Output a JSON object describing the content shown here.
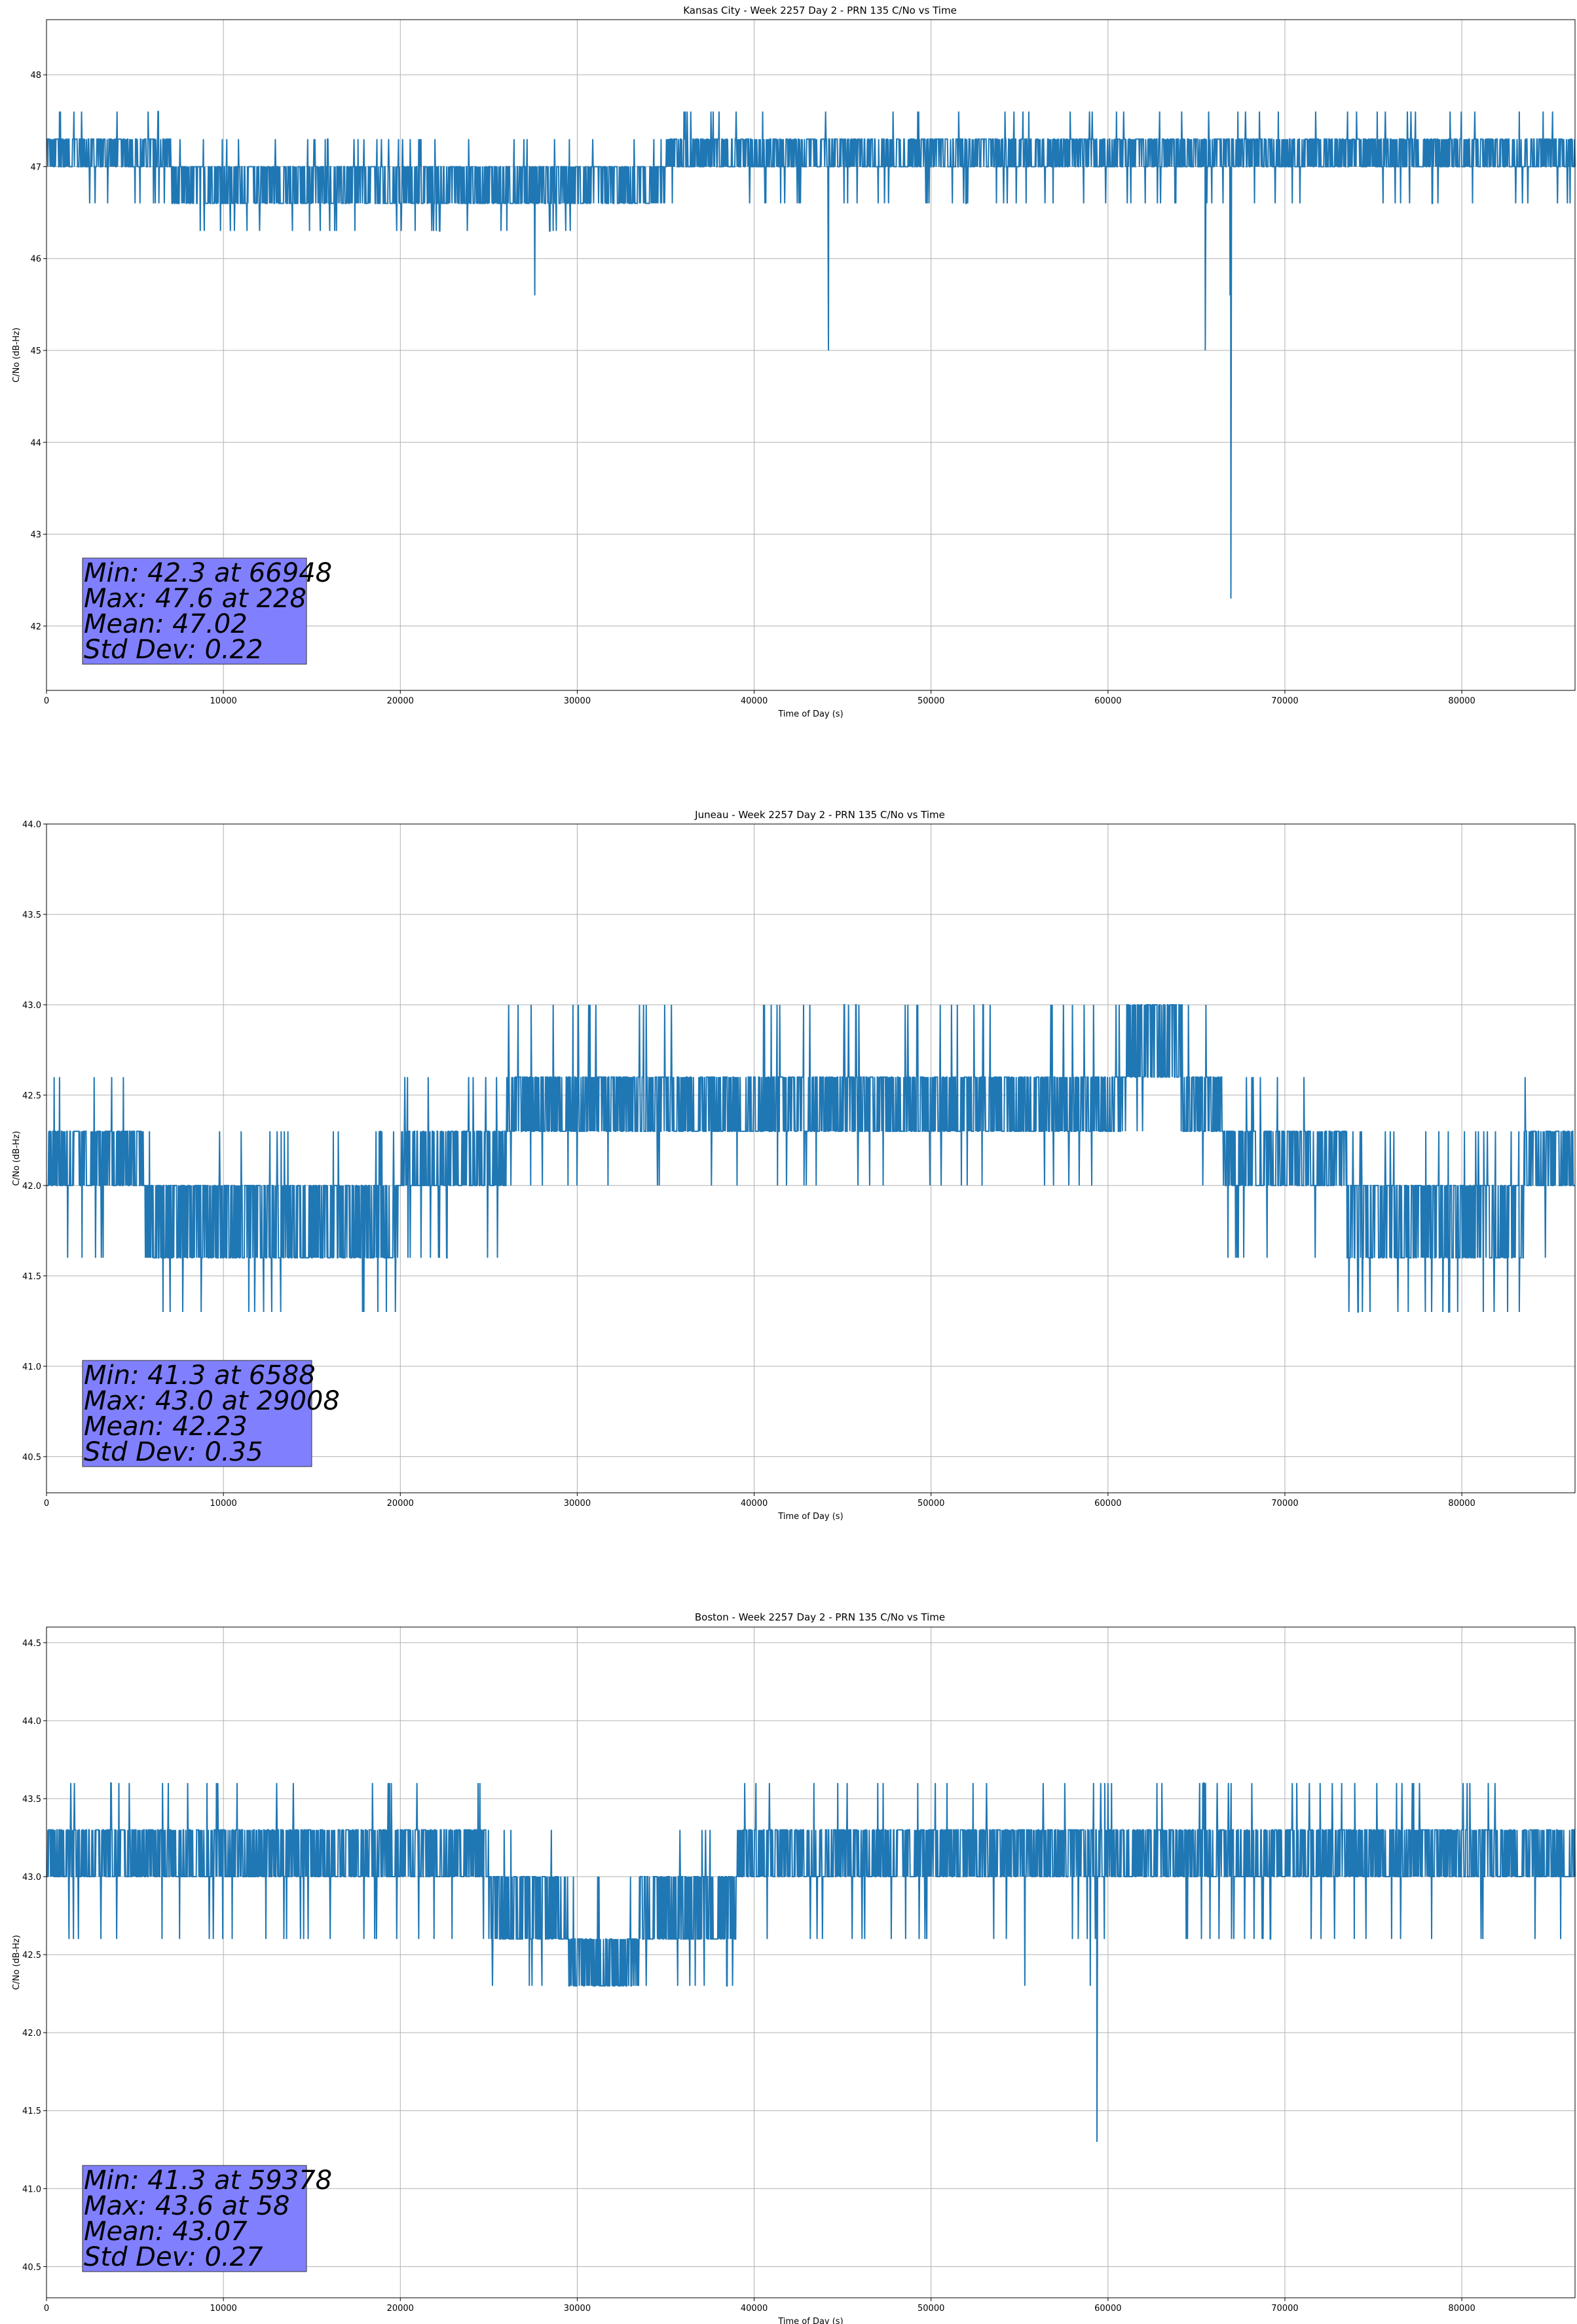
{
  "figure": {
    "background": "#ffffff",
    "line_color": "#1f77b4",
    "grid_color": "#b0b0b0",
    "stats_box_color": "#8080ff"
  },
  "chart_data": [
    {
      "type": "line",
      "title": "Kansas City - Week 2257 Day 2 - PRN 135 C/No vs Time",
      "xlabel": "Time of Day (s)",
      "ylabel": "C/No (dB-Hz)",
      "xlim": [
        0,
        86400
      ],
      "ylim": [
        41.3,
        48.6
      ],
      "xticks": [
        0,
        10000,
        20000,
        30000,
        40000,
        50000,
        60000,
        70000,
        80000
      ],
      "yticks": [
        42,
        43,
        44,
        45,
        46,
        47,
        48
      ],
      "ytick_labels": [
        "42",
        "43",
        "44",
        "45",
        "46",
        "47",
        "48"
      ],
      "grid": true,
      "legend": "none",
      "levels": [
        46.3,
        46.6,
        47.0,
        47.3,
        47.6
      ],
      "segments": [
        {
          "x": [
            0,
            7000
          ],
          "range": [
            47.0,
            47.3
          ]
        },
        {
          "x": [
            7000,
            35000
          ],
          "range": [
            46.6,
            47.0
          ]
        },
        {
          "x": [
            35000,
            86400
          ],
          "range": [
            47.0,
            47.3
          ]
        }
      ],
      "spikes": [
        {
          "x": 27600,
          "y": 45.6
        },
        {
          "x": 44200,
          "y": 45.0
        },
        {
          "x": 65500,
          "y": 45.0
        },
        {
          "x": 66900,
          "y": 45.6
        },
        {
          "x": 66948,
          "y": 42.3
        }
      ],
      "series": [
        {
          "values": []
        }
      ],
      "stats": {
        "min_line": "Min: 42.3 at 66948",
        "max_line": "Max: 47.6 at 228",
        "mean_line": "Mean: 47.02",
        "std_line": "Std Dev: 0.22"
      }
    },
    {
      "type": "line",
      "title": "Juneau - Week 2257 Day 2 - PRN 135 C/No vs Time",
      "xlabel": "Time of Day (s)",
      "ylabel": "C/No (dB-Hz)",
      "xlim": [
        0,
        86400
      ],
      "ylim": [
        40.3,
        44.0
      ],
      "xticks": [
        0,
        10000,
        20000,
        30000,
        40000,
        50000,
        60000,
        70000,
        80000
      ],
      "yticks": [
        40.5,
        41.0,
        41.5,
        42.0,
        42.5,
        43.0,
        43.5,
        44.0
      ],
      "ytick_labels": [
        "40.5",
        "41.0",
        "41.5",
        "42.0",
        "42.5",
        "43.0",
        "43.5",
        "44.0"
      ],
      "grid": true,
      "legend": "none",
      "levels": [
        41.3,
        41.6,
        42.0,
        42.3,
        42.6,
        43.0
      ],
      "segments": [
        {
          "x": [
            0,
            5500
          ],
          "range": [
            42.0,
            42.3
          ]
        },
        {
          "x": [
            5500,
            20000
          ],
          "range": [
            41.6,
            42.0
          ]
        },
        {
          "x": [
            20000,
            26000
          ],
          "range": [
            42.0,
            42.3
          ]
        },
        {
          "x": [
            26000,
            61000
          ],
          "range": [
            42.3,
            42.6
          ]
        },
        {
          "x": [
            61000,
            64200
          ],
          "range": [
            42.6,
            43.0
          ]
        },
        {
          "x": [
            64200,
            66500
          ],
          "range": [
            42.3,
            42.6
          ]
        },
        {
          "x": [
            66500,
            73500
          ],
          "range": [
            42.0,
            42.3
          ]
        },
        {
          "x": [
            73500,
            83500
          ],
          "range": [
            41.6,
            42.0
          ]
        },
        {
          "x": [
            83500,
            86400
          ],
          "range": [
            42.0,
            42.3
          ]
        }
      ],
      "spikes": [
        {
          "x": 6588,
          "y": 41.3
        },
        {
          "x": 67300,
          "y": 41.6
        }
      ],
      "series": [
        {
          "values": []
        }
      ],
      "stats": {
        "min_line": "Min: 41.3 at 6588",
        "max_line": "Max: 43.0 at 29008",
        "mean_line": "Mean: 42.23",
        "std_line": "Std Dev: 0.35"
      }
    },
    {
      "type": "line",
      "title": "Boston - Week 2257 Day 2 - PRN 135 C/No vs Time",
      "xlabel": "Time of Day (s)",
      "ylabel": "C/No (dB-Hz)",
      "xlim": [
        0,
        86400
      ],
      "ylim": [
        40.3,
        44.6
      ],
      "xticks": [
        0,
        10000,
        20000,
        30000,
        40000,
        50000,
        60000,
        70000,
        80000
      ],
      "yticks": [
        40.5,
        41.0,
        41.5,
        42.0,
        42.5,
        43.0,
        43.5,
        44.0,
        44.5
      ],
      "ytick_labels": [
        "40.5",
        "41.0",
        "41.5",
        "42.0",
        "42.5",
        "43.0",
        "43.5",
        "44.0",
        "44.5"
      ],
      "grid": true,
      "legend": "none",
      "levels": [
        42.3,
        42.6,
        43.0,
        43.3,
        43.6
      ],
      "segments": [
        {
          "x": [
            0,
            25000
          ],
          "range": [
            43.0,
            43.3
          ]
        },
        {
          "x": [
            25000,
            29500
          ],
          "range": [
            42.6,
            43.0
          ]
        },
        {
          "x": [
            29500,
            33500
          ],
          "range": [
            42.3,
            42.6
          ]
        },
        {
          "x": [
            33500,
            39000
          ],
          "range": [
            42.6,
            43.0
          ]
        },
        {
          "x": [
            39000,
            86400
          ],
          "range": [
            43.0,
            43.3
          ]
        }
      ],
      "spikes": [
        {
          "x": 59378,
          "y": 41.3
        },
        {
          "x": 59000,
          "y": 42.3
        },
        {
          "x": 55300,
          "y": 42.3
        }
      ],
      "series": [
        {
          "values": []
        }
      ],
      "stats": {
        "min_line": "Min: 41.3 at 59378",
        "max_line": "Max: 43.6 at 58",
        "mean_line": "Mean: 43.07",
        "std_line": "Std Dev: 0.27"
      }
    }
  ]
}
